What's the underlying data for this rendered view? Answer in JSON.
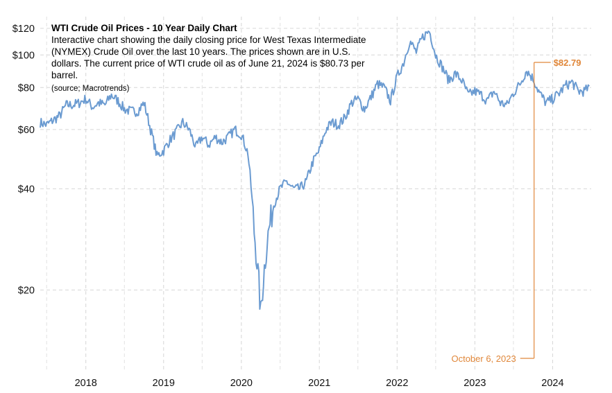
{
  "chart_data": {
    "type": "line",
    "title": "WTI Crude Oil Prices - 10 Year Daily Chart",
    "subtitle": "Interactive chart showing the daily closing price for West Texas Intermediate (NYMEX) Crude Oil over the last 10 years. The prices shown are in U.S. dollars. The current price of WTI crude oil as of June 21, 2024 is $80.73 per barrel.",
    "source": "(source; Macrotrends)",
    "y_scale": "log",
    "ylim": [
      11.5,
      130
    ],
    "xlim": [
      "2017-06-01",
      "2024-06-30"
    ],
    "x_ticks": [
      "2018",
      "2019",
      "2020",
      "2021",
      "2022",
      "2023",
      "2024"
    ],
    "x_tick_dates": [
      "2018-01-01",
      "2019-01-01",
      "2020-01-01",
      "2021-01-01",
      "2022-01-01",
      "2023-01-01",
      "2024-01-01"
    ],
    "y_ticks": [
      20,
      40,
      60,
      80,
      100,
      120
    ],
    "y_tick_labels": [
      "$20",
      "$40",
      "$60",
      "$80",
      "$100",
      "$120"
    ],
    "grid": true,
    "line_color": "#6b9bd1",
    "annotation_color": "#e0873a",
    "tooltip": {
      "date": "October 6, 2023",
      "value_label": "$82.79",
      "x": "2023-10-06",
      "y": 82.79
    },
    "series": [
      {
        "x": [
          "2017-06-01",
          "2017-07-01",
          "2017-08-01",
          "2017-09-01",
          "2017-10-01",
          "2017-11-01",
          "2017-12-01",
          "2018-01-01",
          "2018-02-01",
          "2018-03-01",
          "2018-04-01",
          "2018-05-01",
          "2018-06-01",
          "2018-07-01",
          "2018-08-01",
          "2018-09-01",
          "2018-10-01",
          "2018-11-01",
          "2018-12-01",
          "2019-01-01",
          "2019-02-01",
          "2019-03-01",
          "2019-04-01",
          "2019-05-01",
          "2019-06-01",
          "2019-07-01",
          "2019-08-01",
          "2019-09-01",
          "2019-10-01",
          "2019-11-01",
          "2019-12-01",
          "2020-01-01",
          "2020-02-01",
          "2020-03-01",
          "2020-04-01",
          "2020-05-01",
          "2020-06-01",
          "2020-07-01",
          "2020-08-01",
          "2020-09-01",
          "2020-10-01",
          "2020-11-01",
          "2020-12-01",
          "2021-01-01",
          "2021-02-01",
          "2021-03-01",
          "2021-04-01",
          "2021-05-01",
          "2021-06-01",
          "2021-07-01",
          "2021-08-01",
          "2021-09-01",
          "2021-10-01",
          "2021-11-01",
          "2021-12-01",
          "2022-01-01",
          "2022-02-01",
          "2022-03-01",
          "2022-04-01",
          "2022-05-01",
          "2022-06-01",
          "2022-07-01",
          "2022-08-01",
          "2022-09-01",
          "2022-10-01",
          "2022-11-01",
          "2022-12-01",
          "2023-01-01",
          "2023-02-01",
          "2023-03-01",
          "2023-04-01",
          "2023-05-01",
          "2023-06-01",
          "2023-07-01",
          "2023-08-01",
          "2023-09-01",
          "2023-10-01",
          "2023-11-01",
          "2023-12-01",
          "2024-01-01",
          "2024-02-01",
          "2024-03-01",
          "2024-04-01",
          "2024-05-01",
          "2024-06-01",
          "2024-06-21"
        ],
        "values": [
          63,
          62,
          64,
          66,
          71,
          71,
          72,
          74,
          70,
          72,
          71,
          76,
          73,
          69,
          68,
          68,
          72,
          60,
          50,
          52,
          56,
          59,
          63,
          60,
          53,
          57,
          54,
          57,
          55,
          57,
          60,
          58,
          51,
          30,
          17,
          28,
          36,
          40,
          42,
          40,
          40,
          42,
          48,
          52,
          60,
          63,
          62,
          65,
          72,
          74,
          69,
          75,
          82,
          80,
          73,
          86,
          95,
          110,
          102,
          113,
          118,
          100,
          92,
          84,
          88,
          84,
          76,
          78,
          76,
          73,
          78,
          72,
          71,
          77,
          82,
          90,
          85,
          77,
          72,
          74,
          77,
          81,
          83,
          78,
          78,
          80.73
        ]
      }
    ]
  }
}
